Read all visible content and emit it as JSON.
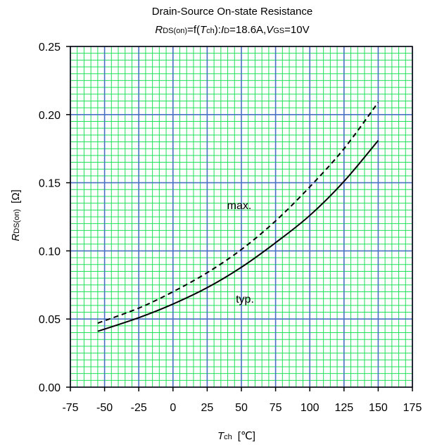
{
  "chart_data": {
    "type": "line",
    "title": "Drain-Source On-state Resistance",
    "subtitle": {
      "r_main": "R",
      "r_sub": "DS(on)",
      "eq_f": "=f(",
      "t_main": "T",
      "t_sub": "ch",
      "colon_i": "):",
      "i_main": "I",
      "i_sub": "D",
      "i_val": "=18.6A,",
      "v_main": "V",
      "v_sub": "GS",
      "v_val": "=10V"
    },
    "xlabel": {
      "main": "T",
      "sub": "ch",
      "unit": "[℃]"
    },
    "ylabel": {
      "main": "R",
      "sub": "DS(on)",
      "unit": "[Ω]"
    },
    "xlim": [
      -75,
      175
    ],
    "ylim": [
      0,
      0.25
    ],
    "x_ticks": [
      "-75",
      "-50",
      "-25",
      "0",
      "25",
      "50",
      "75",
      "100",
      "125",
      "150",
      "175"
    ],
    "y_ticks": [
      "0.00",
      "0.05",
      "0.10",
      "0.15",
      "0.20",
      "0.25"
    ],
    "grid": true,
    "series": [
      {
        "name": "max.",
        "style": "dashed",
        "x": [
          -55,
          -25,
          0,
          25,
          50,
          75,
          100,
          125,
          150
        ],
        "y": [
          0.047,
          0.058,
          0.07,
          0.084,
          0.101,
          0.122,
          0.147,
          0.175,
          0.209
        ]
      },
      {
        "name": "typ.",
        "style": "solid",
        "x": [
          -55,
          -25,
          0,
          25,
          50,
          75,
          100,
          125,
          150
        ],
        "y": [
          0.041,
          0.051,
          0.061,
          0.073,
          0.088,
          0.106,
          0.126,
          0.151,
          0.181
        ]
      }
    ],
    "colors": {
      "major_grid": "#4a70c4",
      "minor_grid": "#22e05a",
      "curve": "#000000"
    }
  }
}
